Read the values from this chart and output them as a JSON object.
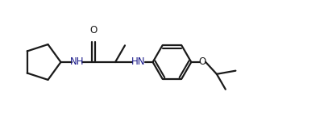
{
  "bg_color": "#ffffff",
  "line_color": "#1a1a1a",
  "text_color": "#1a1a1a",
  "nh_color": "#1a1a8a",
  "o_color": "#1a1a1a",
  "line_width": 1.6,
  "font_size": 8.5,
  "figsize": [
    4.07,
    1.5
  ],
  "dpi": 100,
  "xlim": [
    0,
    10.2
  ],
  "ylim": [
    0.5,
    4.0
  ]
}
